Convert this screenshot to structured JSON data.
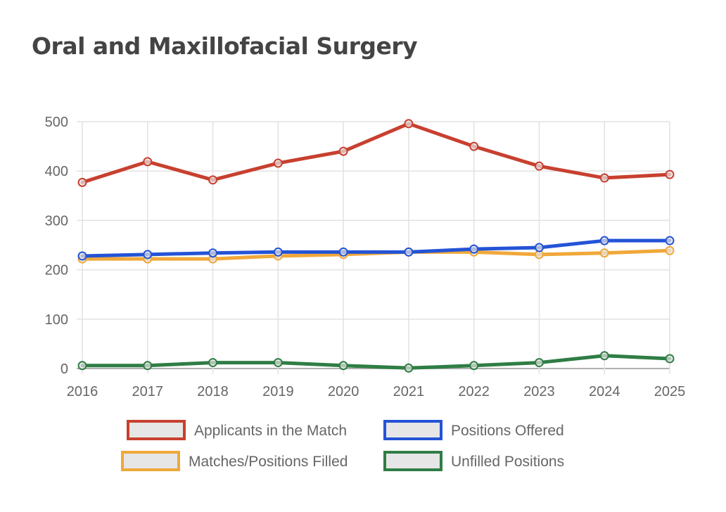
{
  "chart_data": {
    "type": "line",
    "title": "Oral and Maxillofacial Surgery",
    "xlabel": "",
    "ylabel": "",
    "categories": [
      "2016",
      "2017",
      "2018",
      "2019",
      "2020",
      "2021",
      "2022",
      "2023",
      "2024",
      "2025"
    ],
    "ylim": [
      0,
      500
    ],
    "yticks": [
      0,
      100,
      200,
      300,
      400,
      500
    ],
    "grid": true,
    "legend_position": "bottom",
    "series": [
      {
        "name": "Applicants in the Match",
        "color": "#c8402f",
        "values": [
          377,
          419,
          382,
          416,
          440,
          496,
          450,
          410,
          386,
          393
        ]
      },
      {
        "name": "Positions Offered",
        "color": "#2453d6",
        "values": [
          228,
          231,
          234,
          236,
          236,
          236,
          242,
          245,
          259,
          259
        ]
      },
      {
        "name": "Matches/Positions Filled",
        "color": "#f0a83a",
        "values": [
          222,
          222,
          222,
          228,
          231,
          236,
          236,
          231,
          234,
          239
        ]
      },
      {
        "name": "Unfilled Positions",
        "color": "#2f7d45",
        "values": [
          6,
          6,
          12,
          12,
          6,
          1,
          6,
          12,
          26,
          20
        ]
      }
    ]
  }
}
